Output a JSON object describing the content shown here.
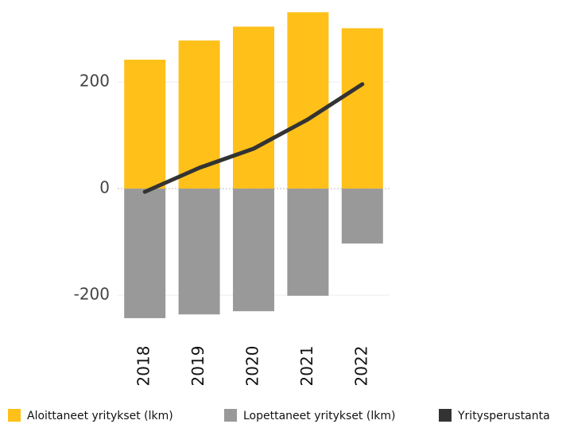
{
  "chart_data": {
    "type": "bar",
    "categories": [
      "2018",
      "2019",
      "2020",
      "2021",
      "2022"
    ],
    "series": [
      {
        "name": "Aloittaneet yritykset (lkm)",
        "type": "bar",
        "color": "#ffc01a",
        "values": [
          242,
          278,
          304,
          331,
          301
        ]
      },
      {
        "name": "Lopettaneet yritykset (lkm)",
        "type": "bar",
        "color": "#999999",
        "values": [
          -243,
          -236,
          -230,
          -201,
          -103
        ]
      },
      {
        "name": "Yritysperustanta",
        "type": "line",
        "color": "#333333",
        "values": [
          -6,
          39,
          75,
          130,
          196
        ]
      }
    ],
    "ylim": [
      -270,
      345
    ],
    "yticks": [
      -200,
      0,
      200
    ],
    "grid": true,
    "legend": "bottom"
  }
}
